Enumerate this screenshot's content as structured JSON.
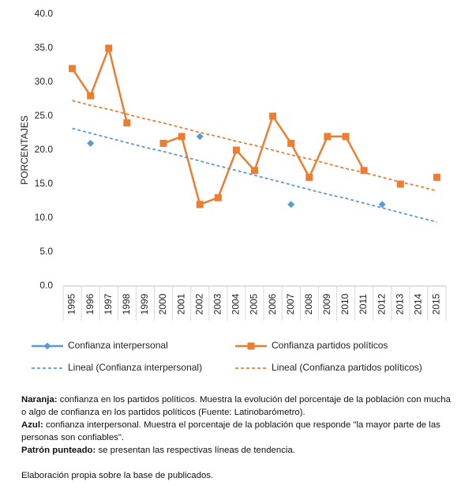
{
  "chart_data": {
    "type": "line",
    "y_label": "PORCENTAJES",
    "categories": [
      "1995",
      "1996",
      "1997",
      "1998",
      "1999",
      "2000",
      "2001",
      "2002",
      "2003",
      "2004",
      "2005",
      "2006",
      "2007",
      "2008",
      "2009",
      "2010",
      "2011",
      "2012",
      "2013",
      "2014",
      "2015"
    ],
    "ylim": [
      0,
      40
    ],
    "yticks": [
      {
        "value": 0,
        "label": "0.0"
      },
      {
        "value": 5,
        "label": "5.0"
      },
      {
        "value": 10,
        "label": "10.0"
      },
      {
        "value": 15,
        "label": "15.0"
      },
      {
        "value": 20,
        "label": "20.0"
      },
      {
        "value": 25,
        "label": "25.0"
      },
      {
        "value": 30,
        "label": "30.0"
      },
      {
        "value": 35,
        "label": "35.0"
      },
      {
        "value": 40,
        "label": "40.0"
      }
    ],
    "series": [
      {
        "name": "Confianza interpersonal",
        "color": "#5b9bd5",
        "marker": "diamond",
        "values": [
          null,
          21,
          null,
          null,
          null,
          null,
          null,
          22,
          null,
          null,
          null,
          null,
          12,
          null,
          null,
          null,
          null,
          12,
          null,
          null,
          null
        ]
      },
      {
        "name": "Confianza partidos políticos",
        "color": "#ed7d31",
        "marker": "square",
        "values": [
          32,
          28,
          35,
          24,
          null,
          21,
          22,
          12,
          13,
          20,
          17,
          25,
          21,
          16,
          22,
          22,
          17,
          null,
          15,
          null,
          16
        ]
      },
      {
        "name": "Lineal (Confianza interpersonal)",
        "color": "#5b9bd5",
        "dashed": true,
        "values": [
          23.2,
          22.5,
          21.8,
          21.1,
          20.4,
          19.8,
          19.1,
          18.4,
          17.7,
          17.0,
          16.3,
          15.6,
          14.9,
          14.2,
          13.5,
          12.9,
          12.2,
          11.5,
          10.8,
          10.1,
          9.4
        ]
      },
      {
        "name": "Lineal (Confianza partidos políticos)",
        "color": "#ed7d31",
        "dashed": true,
        "values": [
          27.3,
          26.6,
          26.0,
          25.3,
          24.6,
          24.0,
          23.3,
          22.6,
          22.0,
          21.3,
          20.7,
          20.0,
          19.3,
          18.7,
          18.0,
          17.3,
          16.7,
          16.0,
          15.3,
          14.7,
          14.0
        ]
      }
    ]
  },
  "notes": [
    {
      "label": "Naranja:",
      "text": "confianza en los partidos políticos. Muestra la evolución del porcentaje de la población con mucha o algo de confianza en los partidos políticos (Fuente: Latinobarómetro)."
    },
    {
      "label": "Azul:",
      "text": "confianza interpersonal. Muestra el porcentaje de la población que responde \"la mayor parte de las personas son confiables\"."
    },
    {
      "label": "Patrón punteado:",
      "text": "se presentan las respectivas líneas de tendencia."
    }
  ],
  "footer": "Elaboración propia sobre la base de publicados."
}
